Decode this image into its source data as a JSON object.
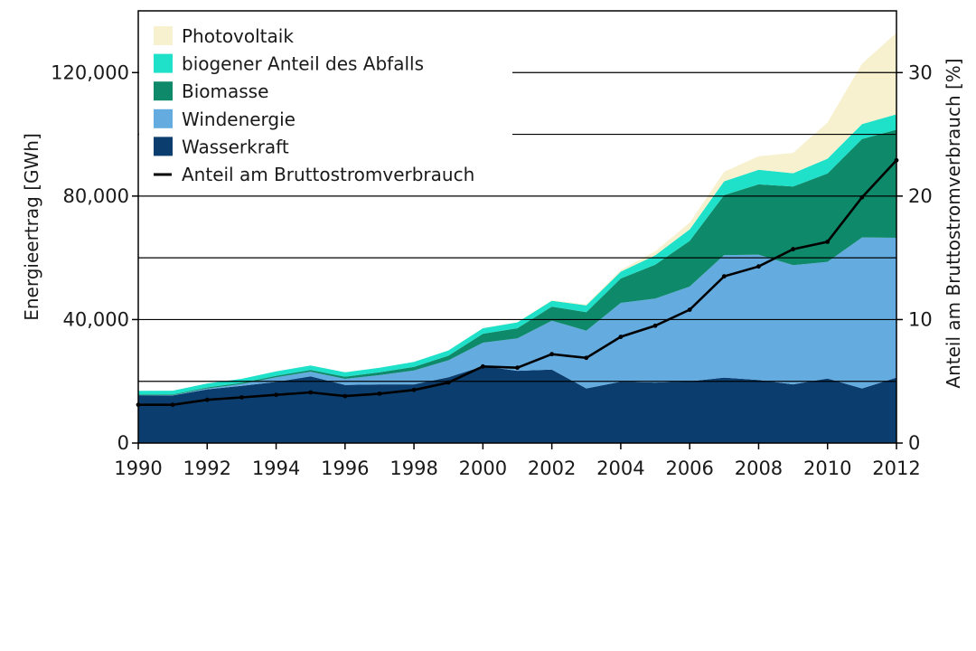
{
  "chart_data": {
    "type": "area",
    "title": "",
    "x": [
      1990,
      1991,
      1992,
      1993,
      1994,
      1995,
      1996,
      1997,
      1998,
      1999,
      2000,
      2001,
      2002,
      2003,
      2004,
      2005,
      2006,
      2007,
      2008,
      2009,
      2010,
      2011,
      2012
    ],
    "series": [
      {
        "name": "Wasserkraft",
        "color": "#0b3e6e",
        "values": [
          15500,
          15400,
          17400,
          18500,
          19800,
          21600,
          18800,
          19000,
          19000,
          21300,
          24900,
          23400,
          23800,
          17700,
          19900,
          19600,
          20000,
          21200,
          20400,
          19000,
          20900,
          17700,
          21200
        ]
      },
      {
        "name": "Windenergie",
        "color": "#64abe0",
        "values": [
          0,
          100,
          300,
          600,
          1500,
          1500,
          2000,
          3000,
          4500,
          5500,
          7600,
          10500,
          15800,
          18700,
          25500,
          27200,
          30700,
          39700,
          40600,
          38600,
          37800,
          48900,
          45300
        ]
      },
      {
        "name": "Biomasse",
        "color": "#0e8a6b",
        "values": [
          200,
          250,
          300,
          400,
          500,
          600,
          700,
          900,
          1200,
          1500,
          2900,
          3300,
          4600,
          6000,
          7900,
          11000,
          14800,
          19400,
          22800,
          25500,
          28600,
          31900,
          35000
        ]
      },
      {
        "name": "biogener Anteil des Abfalls",
        "color": "#1fe0c8",
        "values": [
          1200,
          1200,
          1300,
          1300,
          1400,
          1400,
          1400,
          1500,
          1600,
          1700,
          1800,
          1900,
          1900,
          2200,
          2200,
          3000,
          3700,
          4500,
          4700,
          4300,
          4800,
          4800,
          5000
        ]
      },
      {
        "name": "Photovoltaik",
        "color": "#f7f1cf",
        "values": [
          0,
          0,
          0,
          0,
          0,
          0,
          0,
          0,
          0,
          0,
          64,
          116,
          188,
          313,
          557,
          1282,
          2220,
          3075,
          4420,
          6583,
          11729,
          19599,
          26380
        ]
      }
    ],
    "line_series": {
      "name": "Anteil am Bruttostromverbrauch",
      "axis": "right",
      "color": "#000000",
      "values": [
        3.1,
        3.1,
        3.5,
        3.7,
        3.9,
        4.1,
        3.8,
        4.0,
        4.3,
        4.9,
        6.2,
        6.1,
        7.2,
        6.9,
        8.6,
        9.5,
        10.8,
        13.5,
        14.3,
        15.7,
        16.3,
        19.9,
        22.9
      ]
    },
    "xlabel": "",
    "ylabel": "Energieertrag [GWh]",
    "ylabel_right": "Anteil am Bruttostromverbrauch [%]",
    "xlim": [
      1990,
      2012
    ],
    "ylim": [
      0,
      140000
    ],
    "ylim_right": [
      0,
      35
    ],
    "x_ticks": [
      "1990",
      "1992",
      "1994",
      "1996",
      "1998",
      "2000",
      "2002",
      "2004",
      "2006",
      "2008",
      "2010",
      "2012"
    ],
    "y_ticks": [
      {
        "value": 0,
        "label": "0"
      },
      {
        "value": 40000,
        "label": "40,000"
      },
      {
        "value": 80000,
        "label": "80,000"
      },
      {
        "value": 120000,
        "label": "120,000"
      }
    ],
    "y_ticks_right": [
      {
        "value": 0,
        "label": "0"
      },
      {
        "value": 10,
        "label": "10"
      },
      {
        "value": 20,
        "label": "20"
      },
      {
        "value": 30,
        "label": "30"
      }
    ],
    "gridlines_right_values": [
      5,
      10,
      15,
      20,
      25,
      30
    ],
    "legend": {
      "placement": "top-left",
      "items": [
        {
          "label": "Photovoltaik",
          "color": "#f7f1cf",
          "kind": "swatch"
        },
        {
          "label": "biogener Anteil des Abfalls",
          "color": "#1fe0c8",
          "kind": "swatch"
        },
        {
          "label": "Biomasse",
          "color": "#0e8a6b",
          "kind": "swatch"
        },
        {
          "label": "Windenergie",
          "color": "#64abe0",
          "kind": "swatch"
        },
        {
          "label": "Wasserkraft",
          "color": "#0b3e6e",
          "kind": "swatch"
        },
        {
          "label": "Anteil am Bruttostromverbrauch",
          "color": "#000000",
          "kind": "line"
        }
      ]
    },
    "grid": true
  }
}
